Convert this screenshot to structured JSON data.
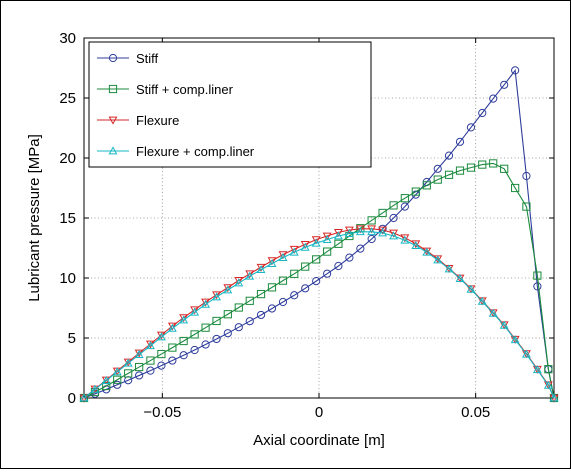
{
  "chart_data": {
    "type": "line",
    "title": "",
    "xlabel": "Axial coordinate [m]",
    "ylabel": "Lubricant pressure [MPa]",
    "xlim": [
      -0.075,
      0.075
    ],
    "ylim": [
      0,
      30
    ],
    "xticks": [
      -0.05,
      0,
      0.05
    ],
    "xtick_labels": [
      "−0.05",
      "0",
      "0.05"
    ],
    "yticks": [
      0,
      5,
      10,
      15,
      20,
      25,
      30
    ],
    "ytick_labels": [
      "0",
      "5",
      "10",
      "15",
      "20",
      "25",
      "30"
    ],
    "grid": true,
    "grid_style": "dotted",
    "legend_position": "top-left",
    "series": [
      {
        "name": "Stiff",
        "color": "#2f3d9c",
        "marker": "circle",
        "points": [
          [
            -0.075,
            0.0
          ],
          [
            -0.0715,
            0.35
          ],
          [
            -0.0679,
            0.72
          ],
          [
            -0.0644,
            1.1
          ],
          [
            -0.0609,
            1.48
          ],
          [
            -0.0574,
            1.88
          ],
          [
            -0.0538,
            2.28
          ],
          [
            -0.0503,
            2.7
          ],
          [
            -0.0468,
            3.12
          ],
          [
            -0.0432,
            3.56
          ],
          [
            -0.0397,
            4.0
          ],
          [
            -0.0362,
            4.46
          ],
          [
            -0.0327,
            4.92
          ],
          [
            -0.0291,
            5.4
          ],
          [
            -0.0256,
            5.9
          ],
          [
            -0.0221,
            6.4
          ],
          [
            -0.0185,
            6.92
          ],
          [
            -0.015,
            7.46
          ],
          [
            -0.0115,
            8.0
          ],
          [
            -0.0079,
            8.56
          ],
          [
            -0.0044,
            9.14
          ],
          [
            -0.0009,
            9.74
          ],
          [
            0.0026,
            10.36
          ],
          [
            0.0062,
            11.0
          ],
          [
            0.0097,
            11.7
          ],
          [
            0.0132,
            12.45
          ],
          [
            0.0168,
            13.25
          ],
          [
            0.0203,
            14.1
          ],
          [
            0.0238,
            15.0
          ],
          [
            0.0274,
            15.95
          ],
          [
            0.0309,
            16.95
          ],
          [
            0.0344,
            18.0
          ],
          [
            0.0379,
            19.1
          ],
          [
            0.0415,
            20.2
          ],
          [
            0.045,
            21.35
          ],
          [
            0.0485,
            22.55
          ],
          [
            0.0521,
            23.75
          ],
          [
            0.0556,
            24.95
          ],
          [
            0.0591,
            26.1
          ],
          [
            0.0626,
            27.3
          ],
          [
            0.0662,
            18.5
          ],
          [
            0.0697,
            9.3
          ],
          [
            0.0732,
            2.4
          ],
          [
            0.075,
            0.0
          ]
        ]
      },
      {
        "name": "Stiff + comp.liner",
        "color": "#1a8a3c",
        "marker": "square",
        "points": [
          [
            -0.075,
            0.0
          ],
          [
            -0.0715,
            0.5
          ],
          [
            -0.0679,
            1.0
          ],
          [
            -0.0644,
            1.52
          ],
          [
            -0.0609,
            2.05
          ],
          [
            -0.0574,
            2.58
          ],
          [
            -0.0538,
            3.12
          ],
          [
            -0.0503,
            3.66
          ],
          [
            -0.0468,
            4.2
          ],
          [
            -0.0432,
            4.75
          ],
          [
            -0.0397,
            5.3
          ],
          [
            -0.0362,
            5.86
          ],
          [
            -0.0327,
            6.42
          ],
          [
            -0.0291,
            6.98
          ],
          [
            -0.0256,
            7.54
          ],
          [
            -0.0221,
            8.1
          ],
          [
            -0.0185,
            8.66
          ],
          [
            -0.015,
            9.22
          ],
          [
            -0.0115,
            9.78
          ],
          [
            -0.0079,
            10.35
          ],
          [
            -0.0044,
            10.95
          ],
          [
            -0.0009,
            11.55
          ],
          [
            0.0026,
            12.2
          ],
          [
            0.0062,
            12.85
          ],
          [
            0.0097,
            13.5
          ],
          [
            0.0132,
            14.15
          ],
          [
            0.0168,
            14.8
          ],
          [
            0.0203,
            15.42
          ],
          [
            0.0238,
            16.05
          ],
          [
            0.0274,
            16.65
          ],
          [
            0.0309,
            17.2
          ],
          [
            0.0344,
            17.72
          ],
          [
            0.0379,
            18.2
          ],
          [
            0.0415,
            18.6
          ],
          [
            0.045,
            18.95
          ],
          [
            0.0485,
            19.2
          ],
          [
            0.0521,
            19.45
          ],
          [
            0.0556,
            19.55
          ],
          [
            0.0591,
            19.1
          ],
          [
            0.0626,
            17.5
          ],
          [
            0.0662,
            15.95
          ],
          [
            0.0697,
            10.2
          ],
          [
            0.0732,
            2.4
          ],
          [
            0.075,
            0.0
          ]
        ]
      },
      {
        "name": "Flexure",
        "color": "#d62728",
        "marker": "triangle-down",
        "points": [
          [
            -0.075,
            0.0
          ],
          [
            -0.0715,
            0.75
          ],
          [
            -0.0679,
            1.5
          ],
          [
            -0.0644,
            2.25
          ],
          [
            -0.0609,
            3.0
          ],
          [
            -0.0574,
            3.75
          ],
          [
            -0.0538,
            4.5
          ],
          [
            -0.0503,
            5.25
          ],
          [
            -0.0468,
            6.0
          ],
          [
            -0.0432,
            6.7
          ],
          [
            -0.0397,
            7.35
          ],
          [
            -0.0362,
            8.0
          ],
          [
            -0.0327,
            8.6
          ],
          [
            -0.0291,
            9.2
          ],
          [
            -0.0256,
            9.8
          ],
          [
            -0.0221,
            10.35
          ],
          [
            -0.0185,
            10.9
          ],
          [
            -0.015,
            11.45
          ],
          [
            -0.0115,
            11.95
          ],
          [
            -0.0079,
            12.4
          ],
          [
            -0.0044,
            12.8
          ],
          [
            -0.0009,
            13.2
          ],
          [
            0.0026,
            13.5
          ],
          [
            0.0062,
            13.8
          ],
          [
            0.0097,
            14.0
          ],
          [
            0.0132,
            14.1
          ],
          [
            0.0168,
            14.1
          ],
          [
            0.0203,
            14.0
          ],
          [
            0.0238,
            13.75
          ],
          [
            0.0274,
            13.35
          ],
          [
            0.0309,
            12.85
          ],
          [
            0.0344,
            12.25
          ],
          [
            0.0379,
            11.6
          ],
          [
            0.0415,
            10.8
          ],
          [
            0.045,
            10.0
          ],
          [
            0.0485,
            9.1
          ],
          [
            0.0521,
            8.1
          ],
          [
            0.0556,
            7.1
          ],
          [
            0.0591,
            6.1
          ],
          [
            0.0626,
            4.9
          ],
          [
            0.0662,
            3.7
          ],
          [
            0.0697,
            2.4
          ],
          [
            0.0732,
            1.1
          ],
          [
            0.075,
            0.0
          ]
        ]
      },
      {
        "name": "Flexure + comp.liner",
        "color": "#17b7c4",
        "marker": "triangle-up",
        "points": [
          [
            -0.075,
            0.0
          ],
          [
            -0.0715,
            0.72
          ],
          [
            -0.0679,
            1.45
          ],
          [
            -0.0644,
            2.18
          ],
          [
            -0.0609,
            2.9
          ],
          [
            -0.0574,
            3.62
          ],
          [
            -0.0538,
            4.35
          ],
          [
            -0.0503,
            5.08
          ],
          [
            -0.0468,
            5.8
          ],
          [
            -0.0432,
            6.5
          ],
          [
            -0.0397,
            7.15
          ],
          [
            -0.0362,
            7.8
          ],
          [
            -0.0327,
            8.42
          ],
          [
            -0.0291,
            9.0
          ],
          [
            -0.0256,
            9.58
          ],
          [
            -0.0221,
            10.15
          ],
          [
            -0.0185,
            10.7
          ],
          [
            -0.015,
            11.2
          ],
          [
            -0.0115,
            11.7
          ],
          [
            -0.0079,
            12.15
          ],
          [
            -0.0044,
            12.55
          ],
          [
            -0.0009,
            12.9
          ],
          [
            0.0026,
            13.2
          ],
          [
            0.0062,
            13.5
          ],
          [
            0.0097,
            13.7
          ],
          [
            0.0132,
            13.85
          ],
          [
            0.0168,
            13.85
          ],
          [
            0.0203,
            13.75
          ],
          [
            0.0238,
            13.5
          ],
          [
            0.0274,
            13.15
          ],
          [
            0.0309,
            12.7
          ],
          [
            0.0344,
            12.15
          ],
          [
            0.0379,
            11.5
          ],
          [
            0.0415,
            10.75
          ],
          [
            0.045,
            9.95
          ],
          [
            0.0485,
            9.05
          ],
          [
            0.0521,
            8.05
          ],
          [
            0.0556,
            7.05
          ],
          [
            0.0591,
            6.05
          ],
          [
            0.0626,
            4.85
          ],
          [
            0.0662,
            3.65
          ],
          [
            0.0697,
            2.35
          ],
          [
            0.0732,
            1.05
          ],
          [
            0.075,
            0.0
          ]
        ]
      }
    ]
  }
}
